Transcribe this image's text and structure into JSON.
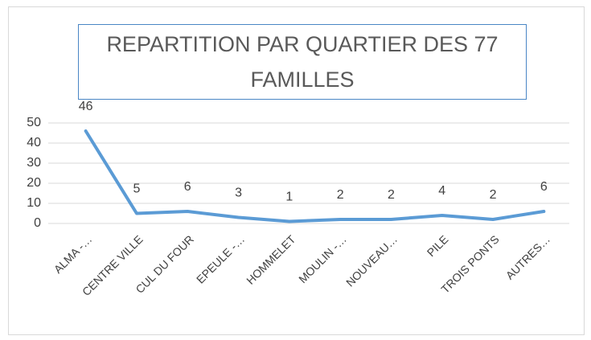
{
  "chart_data": {
    "type": "line",
    "title": "REPARTITION PAR QUARTIER DES 77 FAMILLES",
    "categories": [
      "ALMA -…",
      "CENTRE VILLE",
      "CUL DU FOUR",
      "EPEULE -…",
      "HOMMELET",
      "MOULIN -…",
      "NOUVEAU…",
      "PILE",
      "TROIS PONTS",
      "AUTRES…"
    ],
    "values": [
      46,
      5,
      6,
      3,
      1,
      2,
      2,
      4,
      2,
      6
    ],
    "color": "#5b9bd5",
    "ylim": [
      0,
      50
    ],
    "yticks": [
      0,
      10,
      20,
      30,
      40,
      50
    ],
    "grid": true
  }
}
